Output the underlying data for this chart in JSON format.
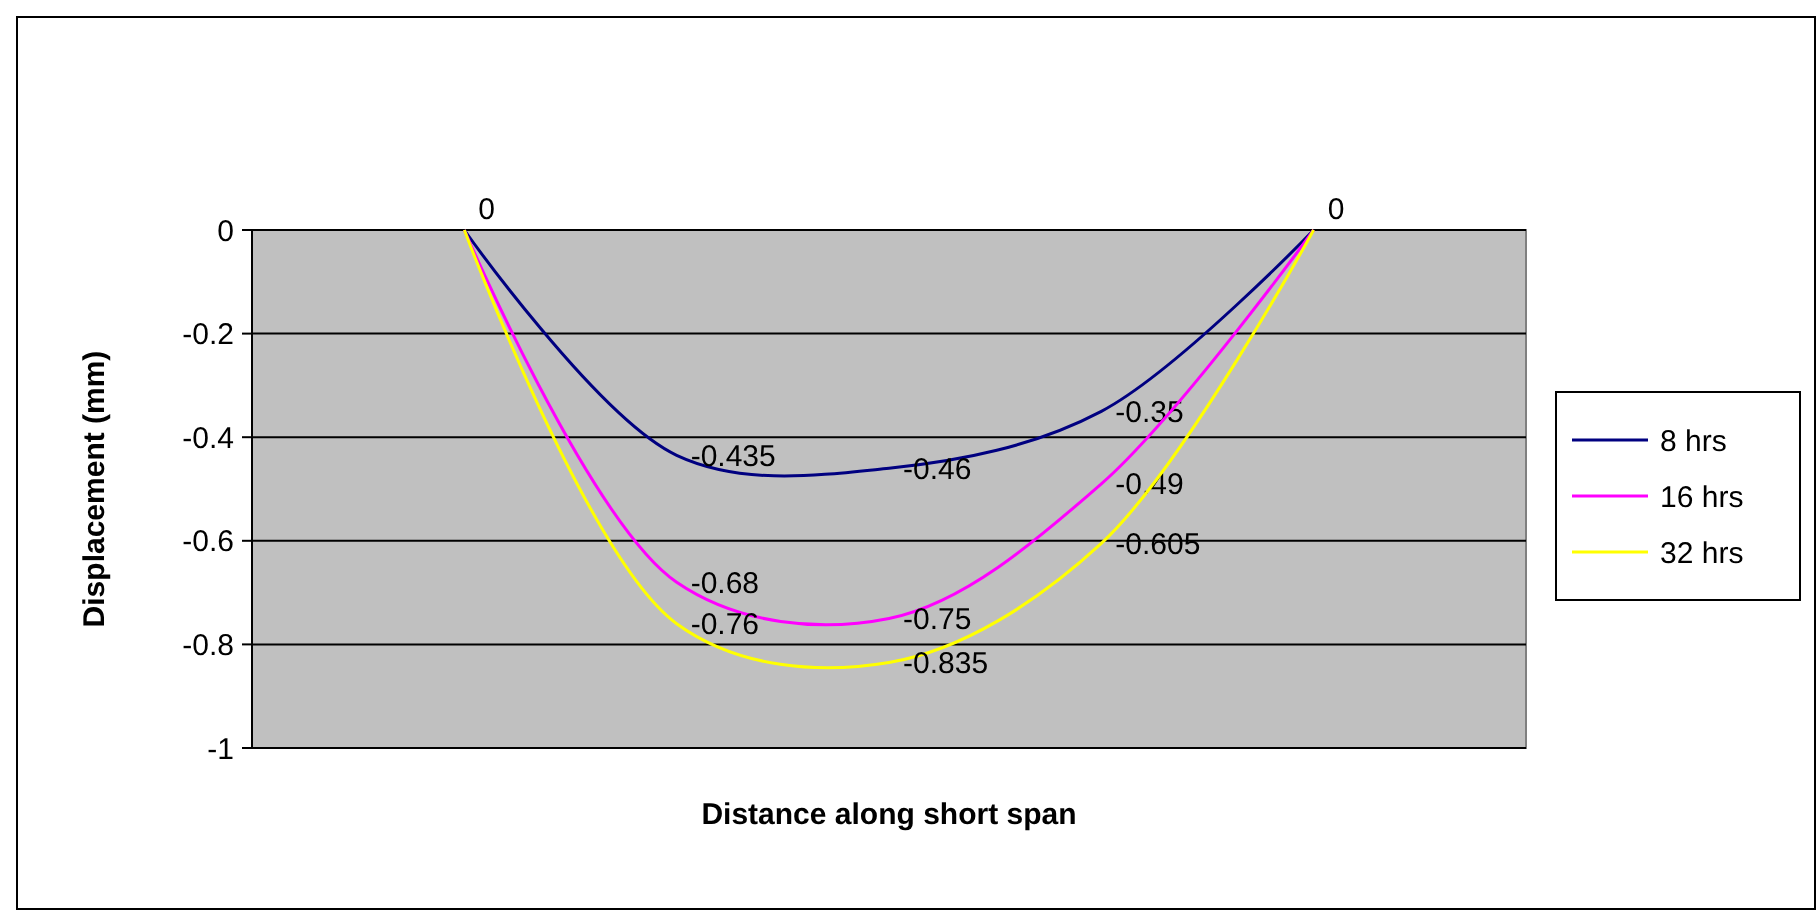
{
  "chart_data": {
    "type": "line",
    "xlabel": "Distance along short span",
    "ylabel": "Displacement (mm)",
    "categories": [
      null,
      null,
      null,
      null,
      null
    ],
    "series": [
      {
        "name": "8 hrs",
        "color": "#000080",
        "values": [
          0,
          -0.435,
          -0.46,
          -0.35,
          0
        ],
        "value_labels": [
          "0",
          "-0.435",
          "-0.46",
          "-0.35",
          "0"
        ]
      },
      {
        "name": "16 hrs",
        "color": "#ff00ff",
        "values": [
          0,
          -0.68,
          -0.75,
          -0.49,
          0
        ],
        "value_labels": [
          null,
          "-0.68",
          "-0.75",
          "-0.49",
          null
        ]
      },
      {
        "name": "32 hrs",
        "color": "#ffff00",
        "values": [
          0,
          -0.76,
          -0.835,
          -0.605,
          0
        ],
        "value_labels": [
          null,
          "-0.76",
          "-0.835",
          "-0.605",
          null
        ]
      }
    ],
    "ylim": [
      -1,
      0
    ],
    "yticks": [
      -1,
      -0.8,
      -0.6,
      -0.4,
      -0.2,
      0
    ],
    "grid": "y",
    "legend": "right",
    "tick_labels": "y",
    "marker": "none",
    "line_style": "solid"
  }
}
